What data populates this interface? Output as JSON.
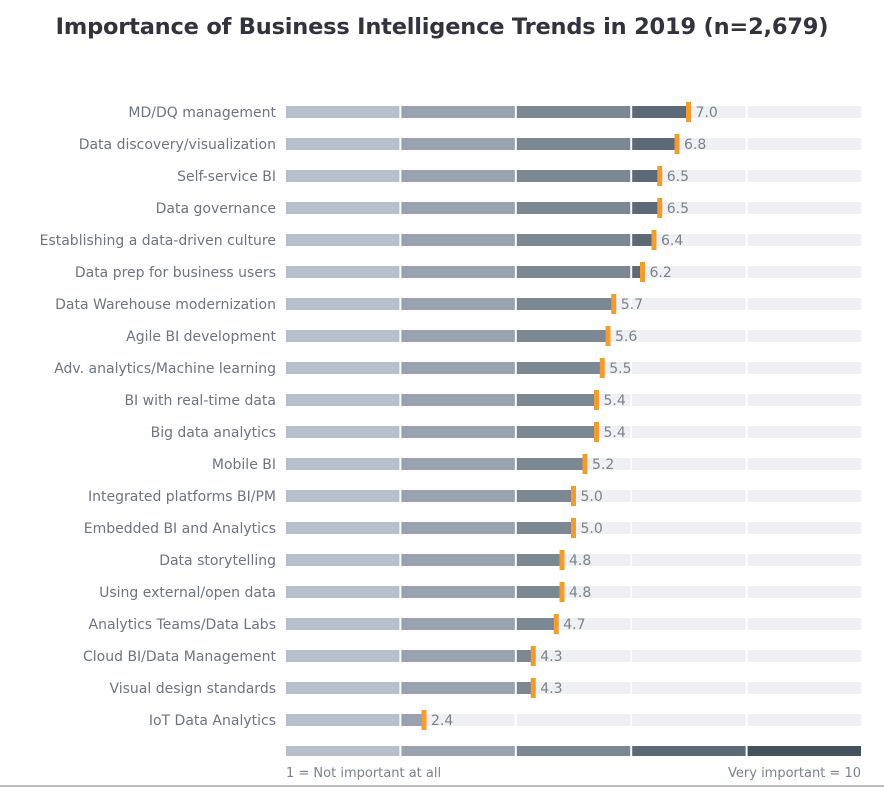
{
  "chart_data": {
    "type": "bar",
    "orientation": "horizontal",
    "title": "Importance of Business Intelligence Trends in 2019 (n=2,679)",
    "xlabel": "",
    "ylabel": "",
    "xlim": [
      0,
      10
    ],
    "grid": false,
    "categories": [
      "MD/DQ management",
      "Data discovery/visualization",
      "Self-service BI",
      "Data governance",
      "Establishing a data-driven culture",
      "Data prep for business users",
      "Data Warehouse modernization",
      "Agile BI development",
      "Adv. analytics/Machine learning",
      "BI with real-time data",
      "Big data analytics",
      "Mobile BI",
      "Integrated platforms BI/PM",
      "Embedded BI and Analytics",
      "Data storytelling",
      "Using external/open data",
      "Analytics Teams/Data Labs",
      "Cloud BI/Data Management",
      "Visual design standards",
      "IoT Data Analytics"
    ],
    "values": [
      7.0,
      6.8,
      6.5,
      6.5,
      6.4,
      6.2,
      5.7,
      5.6,
      5.5,
      5.4,
      5.4,
      5.2,
      5.0,
      5.0,
      4.8,
      4.8,
      4.7,
      4.3,
      4.3,
      2.4
    ],
    "value_labels": [
      "7.0",
      "6.8",
      "6.5",
      "6.5",
      "6.4",
      "6.2",
      "5.7",
      "5.6",
      "5.5",
      "5.4",
      "5.4",
      "5.2",
      "5.0",
      "5.0",
      "4.8",
      "4.8",
      "4.7",
      "4.3",
      "4.3",
      "2.4"
    ],
    "scale_legend": {
      "min_label": "1 = Not important at all",
      "max_label": "Very important = 10",
      "segments": 5
    },
    "colors": {
      "segments": [
        "#b7bec7",
        "#9aa3ad",
        "#7d8793",
        "#5e6977",
        "#46515e"
      ],
      "track": "#eef0f3",
      "marker": "#f19c2c"
    }
  }
}
